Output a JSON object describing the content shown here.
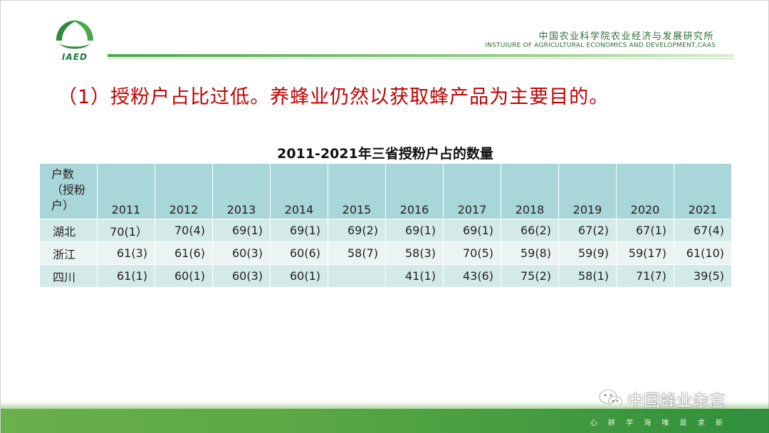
{
  "header": {
    "org_name_cn": "中国农业科学院农业经济与发展研究所",
    "org_name_en": "INSTUIURE OF AGRICULTURAL ECONOMICS AND DEVELOPMENT,CAAS",
    "logo_text": "IAED"
  },
  "heading": "（1）授粉户占比过低。养蜂业仍然以获取蜂产品为主要目的。",
  "table": {
    "title": "2011-2021年三省授粉户占的数量",
    "corner_label": "户数\n（授粉\n户）",
    "years": [
      "2011",
      "2012",
      "2013",
      "2014",
      "2015",
      "2016",
      "2017",
      "2018",
      "2019",
      "2020",
      "2021"
    ],
    "rows": [
      {
        "province": "湖北",
        "values": [
          "70(1）",
          "70(4)",
          "69(1)",
          "69(1)",
          "69(2)",
          "69(1)",
          "69(1)",
          "66(2)",
          "67(2)",
          "67(1)",
          "67(4)"
        ]
      },
      {
        "province": "浙江",
        "values": [
          "61(3)",
          "61(6)",
          "60(3)",
          "60(6)",
          "58(7)",
          "58(3)",
          "70(5)",
          "59(8)",
          "59(9)",
          "59(17)",
          "61(10)"
        ]
      },
      {
        "province": "四川",
        "values": [
          "61(1)",
          "60(1)",
          "60(3)",
          "60(1)",
          "",
          "41(1)",
          "43(6)",
          "75(2)",
          "58(1)",
          "71(7)",
          "39(5)"
        ]
      }
    ]
  },
  "footer": {
    "motto": "心 耕 学 海   唯 是 求 新",
    "watermark": "中国蜂业杂志"
  },
  "colors": {
    "heading": "#c00000",
    "table_header": "#a9d6d9",
    "table_row_dark": "#d4eae8",
    "table_row_light": "#eaf4f3",
    "brand_green": "#2d6b36"
  }
}
